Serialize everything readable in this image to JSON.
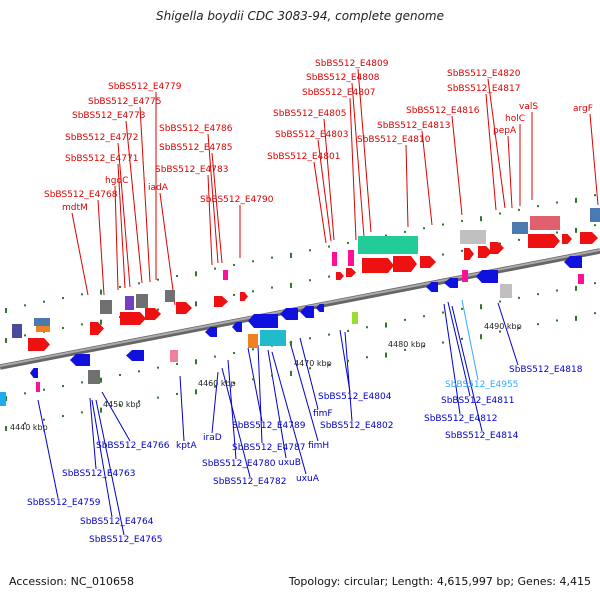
{
  "title": "Shigella boydii CDC 3083-94, complete genome",
  "footer": {
    "accession": "Accession: NC_010658",
    "summary": "Topology: circular; Length: 4,615,997 bp; Genes: 4,415"
  },
  "colors": {
    "top_label": "#dd0000",
    "bottom_label": "#0000cc",
    "highlight_label": "#33aaff",
    "backbone": "#888888"
  },
  "ticks": [
    {
      "label": "4440 kbp"
    },
    {
      "label": "4450 kbp"
    },
    {
      "label": "4460 kbp"
    },
    {
      "label": "4470 kbp"
    },
    {
      "label": "4480 kbp"
    },
    {
      "label": "4490 kbp"
    }
  ],
  "top_labels": [
    {
      "text": "SbBS512_E4779"
    },
    {
      "text": "SbBS512_E4775"
    },
    {
      "text": "SbBS512_E4773"
    },
    {
      "text": "SbBS512_E4786"
    },
    {
      "text": "SbBS512_E4772"
    },
    {
      "text": "SbBS512_E4785"
    },
    {
      "text": "SbBS512_E4771"
    },
    {
      "text": "SbBS512_E4783"
    },
    {
      "text": "hgdC"
    },
    {
      "text": "iadA"
    },
    {
      "text": "SbBS512_E4768"
    },
    {
      "text": "mdtM"
    },
    {
      "text": "SbBS512_E4790"
    },
    {
      "text": "SbBS512_E4809"
    },
    {
      "text": "SbBS512_E4808"
    },
    {
      "text": "SbBS512_E4807"
    },
    {
      "text": "SbBS512_E4805"
    },
    {
      "text": "SbBS512_E4803"
    },
    {
      "text": "SbBS512_E4801"
    },
    {
      "text": "SbBS512_E4813"
    },
    {
      "text": "SbBS512_E4810"
    },
    {
      "text": "SbBS512_E4816"
    },
    {
      "text": "SbBS512_E4820"
    },
    {
      "text": "SbBS512_E4817"
    },
    {
      "text": "valS"
    },
    {
      "text": "holC"
    },
    {
      "text": "pepA"
    },
    {
      "text": "argF"
    }
  ],
  "bottom_labels": [
    {
      "text": "SbBS512_E4818"
    },
    {
      "text": "SbBS512_E4955",
      "highlight": true
    },
    {
      "text": "SbBS512_E4811"
    },
    {
      "text": "SbBS512_E4812"
    },
    {
      "text": "SbBS512_E4814"
    },
    {
      "text": "SbBS512_E4804"
    },
    {
      "text": "SbBS512_E4802"
    },
    {
      "text": "fimF"
    },
    {
      "text": "fimH"
    },
    {
      "text": "SbBS512_E4789"
    },
    {
      "text": "SbBS512_E4787"
    },
    {
      "text": "uxuB"
    },
    {
      "text": "uxuA"
    },
    {
      "text": "SbBS512_E4780"
    },
    {
      "text": "SbBS512_E4782"
    },
    {
      "text": "iraD"
    },
    {
      "text": "kptA"
    },
    {
      "text": "SbBS512_E4766"
    },
    {
      "text": "SbBS512_E4763"
    },
    {
      "text": "SbBS512_E4759"
    },
    {
      "text": "SbBS512_E4764"
    },
    {
      "text": "SbBS512_E4765"
    }
  ]
}
